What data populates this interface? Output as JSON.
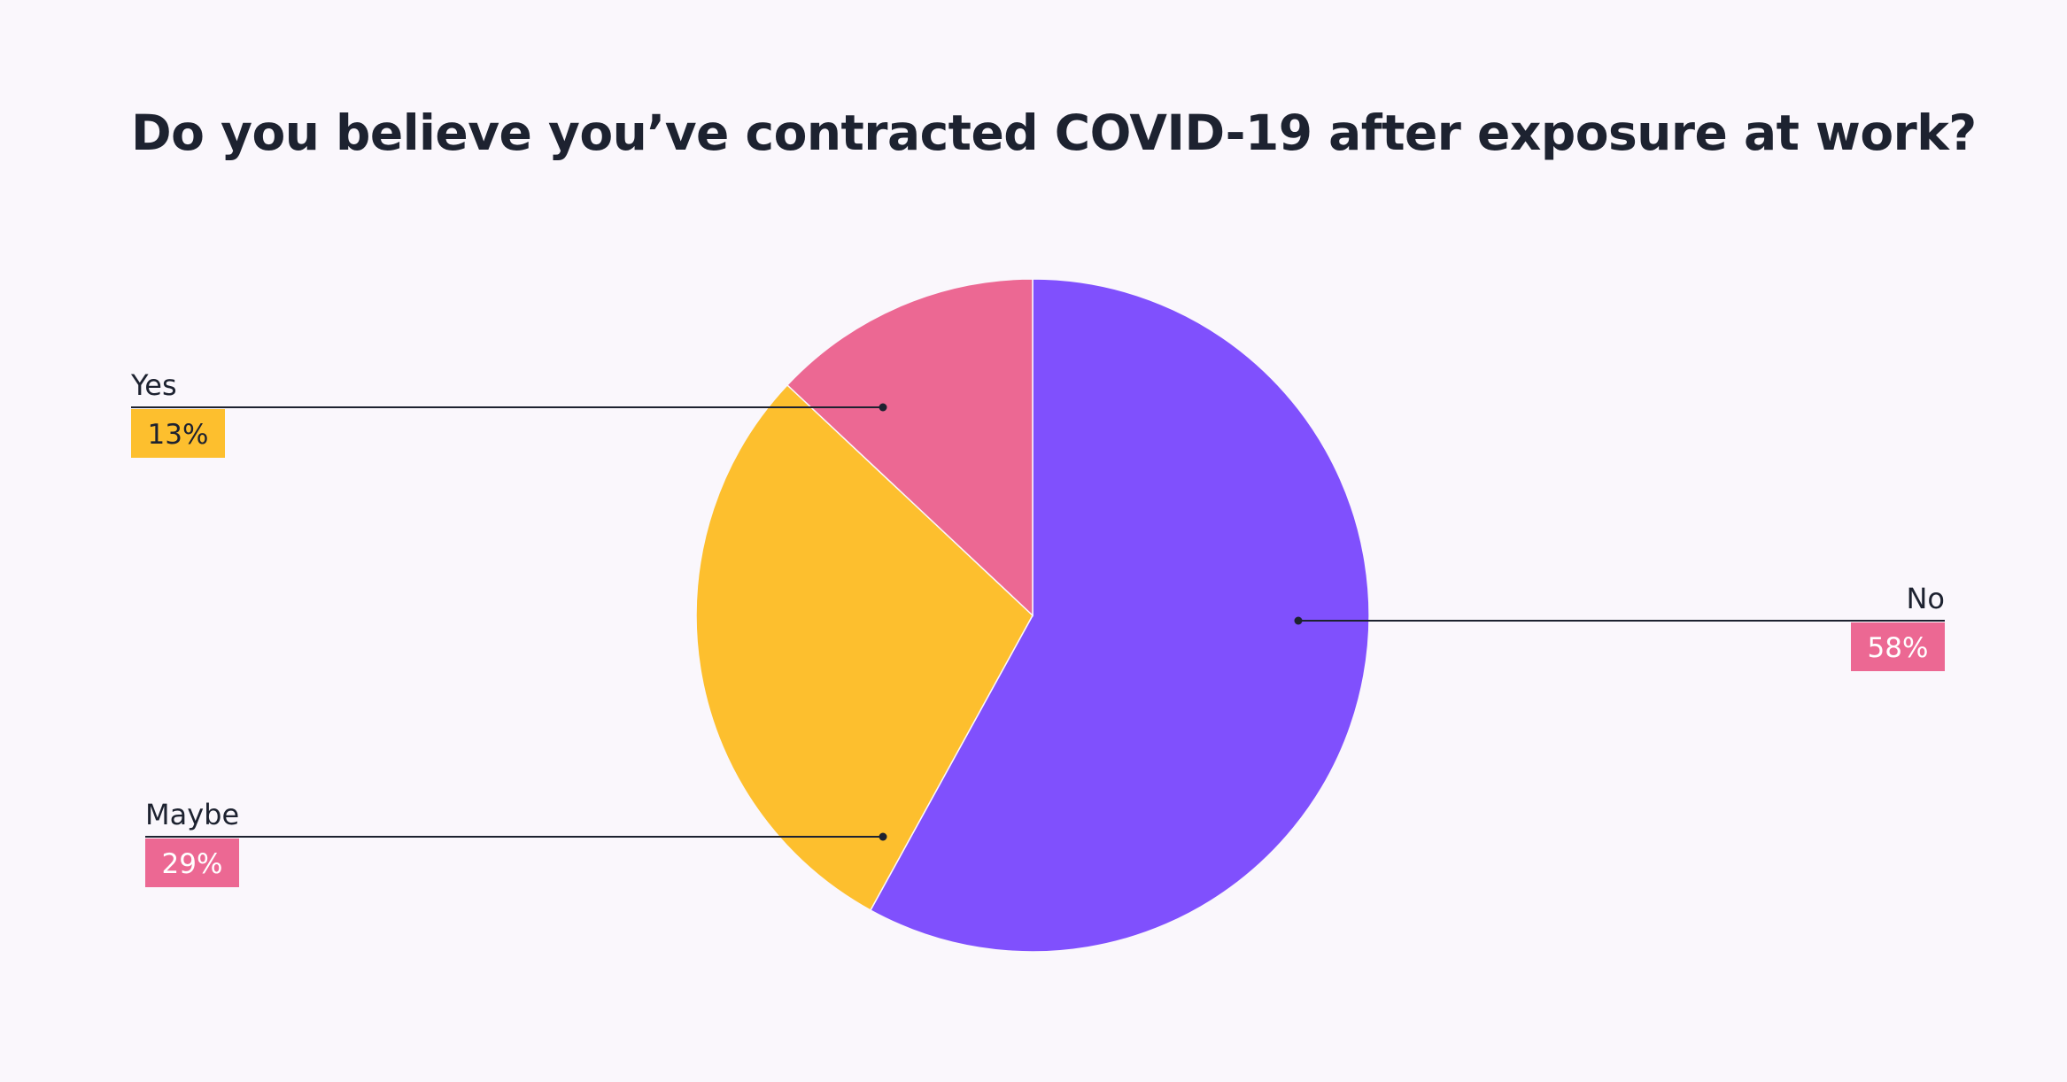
{
  "chart_data": {
    "type": "pie",
    "title": "Do you believe you’ve contracted COVID-19 after exposure at work?",
    "slices": [
      {
        "label": "No",
        "value": 58,
        "display": "58%",
        "color": "#8050fd",
        "badge_color": "#ec6893",
        "badge_text_color": "#ffffff"
      },
      {
        "label": "Maybe",
        "value": 29,
        "display": "29%",
        "color": "#fdbf2e",
        "badge_color": "#ec6893",
        "badge_text_color": "#ffffff"
      },
      {
        "label": "Yes",
        "value": 13,
        "display": "13%",
        "color": "#ec6893",
        "badge_color": "#fdbf2e",
        "badge_text_color": "#1d2230"
      }
    ]
  }
}
